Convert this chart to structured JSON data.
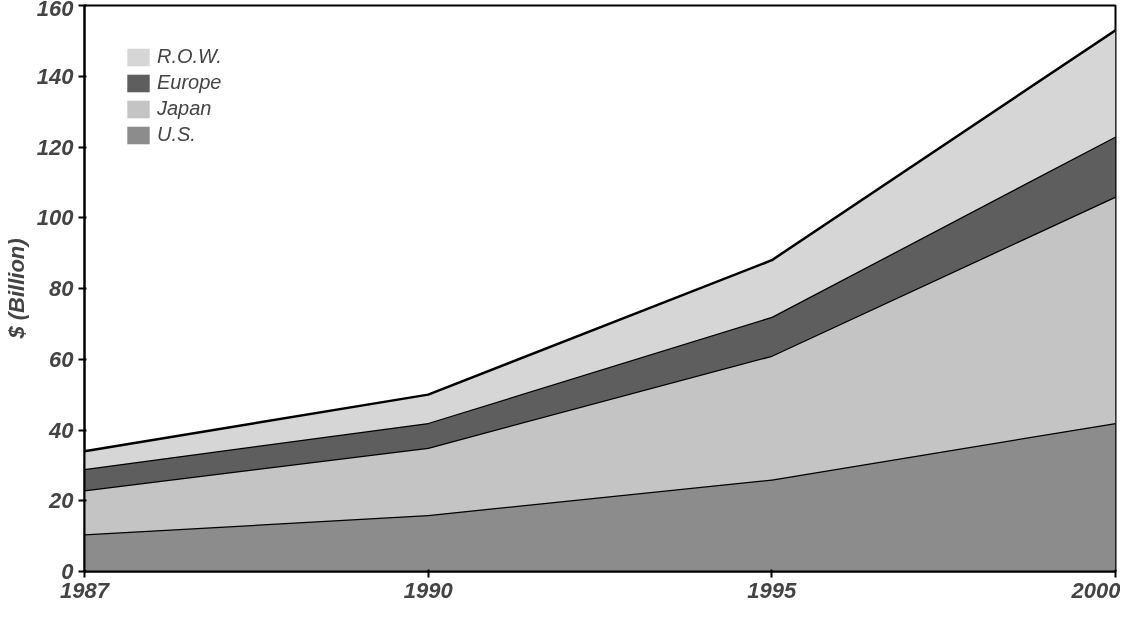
{
  "chart_data": {
    "type": "area",
    "stacked": true,
    "ylabel": "$ (Billion)",
    "categories": [
      "1987",
      "1990",
      "1995",
      "2000"
    ],
    "series": [
      {
        "name": "U.S.",
        "color": "#8c8c8c",
        "values": [
          10.5,
          16,
          26,
          42
        ]
      },
      {
        "name": "Japan",
        "color": "#c4c4c4",
        "values": [
          12.5,
          19,
          35,
          64
        ]
      },
      {
        "name": "Europe",
        "color": "#5e5e5e",
        "values": [
          6,
          7,
          11,
          17
        ]
      },
      {
        "name": "R.O.W.",
        "color": "#d6d6d6",
        "values": [
          5,
          8,
          16,
          30
        ]
      }
    ],
    "ylim": [
      0,
      160
    ],
    "yticks": [
      0,
      20,
      40,
      60,
      80,
      100,
      120,
      140,
      160
    ],
    "grid": false,
    "legend": "top left"
  }
}
